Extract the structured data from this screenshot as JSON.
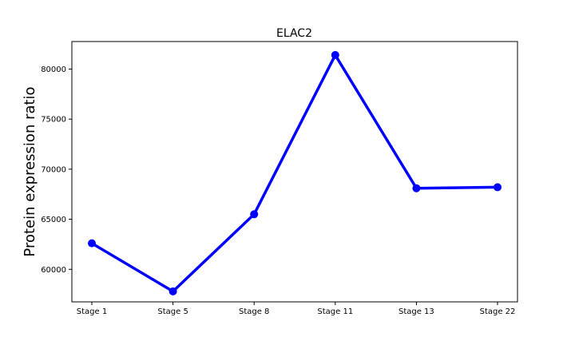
{
  "chart_data": {
    "type": "line",
    "title": "ELAC2",
    "xlabel": "",
    "ylabel": "Protein expression ratio",
    "categories": [
      "Stage 1",
      "Stage 5",
      "Stage 8",
      "Stage 11",
      "Stage 13",
      "Stage 22"
    ],
    "series": [
      {
        "values": [
          62600,
          57800,
          65500,
          81400,
          68100,
          68200
        ]
      }
    ],
    "yticks": [
      60000,
      65000,
      70000,
      75000,
      80000
    ],
    "ylim": [
      56750,
      82750
    ],
    "grid": false,
    "line_color": "#0000ff"
  }
}
